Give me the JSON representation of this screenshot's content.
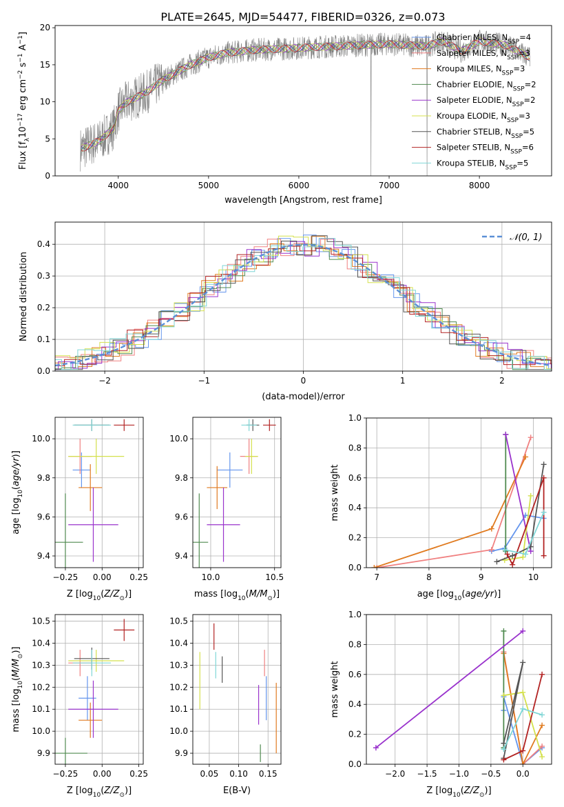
{
  "figure_title": "PLATE=2645, MJD=54477, FIBERID=0326, z=0.073",
  "colors": {
    "Chabrier MILES": "#6495ed",
    "Salpeter MILES": "#f08080",
    "Kroupa MILES": "#e07a1f",
    "Chabrier ELODIE": "#4f8a4f",
    "Salpeter ELODIE": "#9932cc",
    "Kroupa ELODIE": "#d4e04c",
    "Chabrier STELIB": "#555555",
    "Salpeter STELIB": "#b22222",
    "Kroupa STELIB": "#7fd6d6",
    "data": "#808080",
    "normal": "#5b8fd6"
  },
  "chart_data": [
    {
      "id": "spectrum",
      "type": "line",
      "xlabel": "wavelength [Angstrom, rest frame]",
      "ylabel": "Flux [f_λ 10^-17 erg cm^-2 s^-1 A^-1]",
      "xlim": [
        3300,
        8800
      ],
      "ylim": [
        0,
        20.3
      ],
      "xticks": [
        4000,
        5000,
        6000,
        7000,
        8000
      ],
      "yticks": [
        0,
        5,
        10,
        15,
        20
      ],
      "grid": false,
      "legend_placement": "right",
      "legend": [
        {
          "base": "Chabrier MILES, N",
          "sub": "SSP",
          "tail": "=4"
        },
        {
          "base": "Salpeter MILES, N",
          "sub": "SSP",
          "tail": "=3"
        },
        {
          "base": "Kroupa MILES, N",
          "sub": "SSP",
          "tail": "=3"
        },
        {
          "base": "Chabrier ELODIE, N",
          "sub": "SSP",
          "tail": "=2"
        },
        {
          "base": "Salpeter ELODIE, N",
          "sub": "SSP",
          "tail": "=2"
        },
        {
          "base": "Kroupa ELODIE, N",
          "sub": "SSP",
          "tail": "=3"
        },
        {
          "base": "Chabrier STELIB, N",
          "sub": "SSP",
          "tail": "=5"
        },
        {
          "base": "Salpeter STELIB, N",
          "sub": "SSP",
          "tail": "=6"
        },
        {
          "base": "Kroupa STELIB, N",
          "sub": "SSP",
          "tail": "=5"
        }
      ],
      "continuum": [
        [
          3580,
          3.6
        ],
        [
          3800,
          4.8
        ],
        [
          3950,
          6.5
        ],
        [
          4000,
          8.8
        ],
        [
          4100,
          10.0
        ],
        [
          4300,
          11.2
        ],
        [
          4500,
          13.0
        ],
        [
          4800,
          15.0
        ],
        [
          5000,
          16.0
        ],
        [
          5200,
          16.6
        ],
        [
          5500,
          17.0
        ],
        [
          5900,
          17.2
        ],
        [
          6200,
          17.4
        ],
        [
          6600,
          17.6
        ],
        [
          7000,
          17.8
        ],
        [
          7400,
          17.5
        ],
        [
          7600,
          18.2
        ],
        [
          7800,
          16.8
        ],
        [
          8000,
          18.2
        ],
        [
          8300,
          17.6
        ],
        [
          8560,
          16.0
        ]
      ]
    },
    {
      "id": "residuals",
      "type": "line",
      "xlabel": "(data-model)/error",
      "ylabel": "Normed distribution",
      "xlim": [
        -2.5,
        2.5
      ],
      "ylim": [
        0,
        0.47
      ],
      "xticks": [
        -2,
        -1,
        0,
        1,
        2
      ],
      "yticks": [
        0.0,
        0.1,
        0.2,
        0.3,
        0.4
      ],
      "grid": true,
      "legend_placement": "top-right",
      "legend": "𝒩(0, 1)"
    },
    {
      "id": "age_vs_Z",
      "type": "scatter",
      "xlabel": "Z [log10(Z/Z☉)]",
      "ylabel": "age  [log10(age/yr)]",
      "xlim": [
        -0.32,
        0.28
      ],
      "ylim": [
        9.34,
        10.11
      ],
      "xticks": [
        -0.25,
        0.0,
        0.25
      ],
      "yticks": [
        9.4,
        9.6,
        9.8,
        10.0
      ],
      "grid": true,
      "points": [
        {
          "model": "Chabrier MILES",
          "x": -0.14,
          "y": 9.84,
          "xerr": 0.06,
          "yerr": 0.09
        },
        {
          "model": "Salpeter MILES",
          "x": -0.15,
          "y": 9.91,
          "xerr": 0.08,
          "yerr": 0.09
        },
        {
          "model": "Kroupa MILES",
          "x": -0.08,
          "y": 9.75,
          "xerr": 0.08,
          "yerr": 0.12
        },
        {
          "model": "Chabrier ELODIE",
          "x": -0.25,
          "y": 9.47,
          "xerr": 0.12,
          "yerr": 0.25
        },
        {
          "model": "Salpeter ELODIE",
          "x": -0.06,
          "y": 9.56,
          "xerr": 0.17,
          "yerr": 0.19
        },
        {
          "model": "Kroupa ELODIE",
          "x": -0.04,
          "y": 9.91,
          "xerr": 0.19,
          "yerr": 0.09
        },
        {
          "model": "Chabrier STELIB",
          "x": -0.07,
          "y": 10.07,
          "xerr": 0.12,
          "yerr": 0.03
        },
        {
          "model": "Salpeter STELIB",
          "x": 0.15,
          "y": 10.07,
          "xerr": 0.07,
          "yerr": 0.03
        },
        {
          "model": "Kroupa STELIB",
          "x": -0.07,
          "y": 10.07,
          "xerr": 0.13,
          "yerr": 0.03
        }
      ]
    },
    {
      "id": "age_vs_mass",
      "type": "scatter",
      "xlabel": "mass [log10(M/M☉)]",
      "ylabel": "",
      "xlim": [
        9.86,
        10.55
      ],
      "ylim": [
        9.34,
        10.11
      ],
      "xticks": [
        10.0,
        10.5
      ],
      "yticks": [
        9.4,
        9.6,
        9.8,
        10.0
      ],
      "grid": true,
      "points": [
        {
          "model": "Chabrier MILES",
          "x": 10.15,
          "y": 9.84,
          "xerr": 0.1,
          "yerr": 0.09
        },
        {
          "model": "Salpeter MILES",
          "x": 10.3,
          "y": 9.91,
          "xerr": 0.07,
          "yerr": 0.09
        },
        {
          "model": "Kroupa MILES",
          "x": 10.05,
          "y": 9.75,
          "xerr": 0.08,
          "yerr": 0.11
        },
        {
          "model": "Chabrier ELODIE",
          "x": 9.91,
          "y": 9.47,
          "xerr": 0.07,
          "yerr": 0.25
        },
        {
          "model": "Salpeter ELODIE",
          "x": 10.1,
          "y": 9.56,
          "xerr": 0.13,
          "yerr": 0.19
        },
        {
          "model": "Kroupa ELODIE",
          "x": 10.32,
          "y": 9.91,
          "xerr": 0.05,
          "yerr": 0.09
        },
        {
          "model": "Chabrier STELIB",
          "x": 10.33,
          "y": 10.07,
          "xerr": 0.05,
          "yerr": 0.03
        },
        {
          "model": "Salpeter STELIB",
          "x": 10.46,
          "y": 10.07,
          "xerr": 0.05,
          "yerr": 0.03
        },
        {
          "model": "Kroupa STELIB",
          "x": 10.3,
          "y": 10.07,
          "xerr": 0.06,
          "yerr": 0.03
        }
      ]
    },
    {
      "id": "mass_weight_vs_age",
      "type": "line",
      "xlabel": "age  [log10(age/yr)]",
      "ylabel": "mass weight",
      "xlim": [
        6.8,
        10.35
      ],
      "ylim": [
        0,
        1.0
      ],
      "xticks": [
        7,
        8,
        9,
        10
      ],
      "yticks": [
        0.0,
        0.2,
        0.4,
        0.6,
        0.8,
        1.0
      ],
      "grid": true,
      "series": [
        {
          "model": "Chabrier MILES",
          "x": [
            9.2,
            9.45,
            9.85,
            10.2
          ],
          "y": [
            0.11,
            0.13,
            0.35,
            0.33
          ]
        },
        {
          "model": "Salpeter MILES",
          "x": [
            7.0,
            9.2,
            9.95
          ],
          "y": [
            0.0,
            0.12,
            0.87
          ]
        },
        {
          "model": "Kroupa MILES",
          "x": [
            6.95,
            9.2,
            9.85
          ],
          "y": [
            0.0,
            0.26,
            0.74
          ]
        },
        {
          "model": "Chabrier ELODIE",
          "x": [
            9.47,
            9.47
          ],
          "y": [
            0.11,
            0.89
          ]
        },
        {
          "model": "Salpeter ELODIE",
          "x": [
            9.47,
            9.95
          ],
          "y": [
            0.89,
            0.11
          ]
        },
        {
          "model": "Kroupa ELODIE",
          "x": [
            9.45,
            9.8,
            9.95
          ],
          "y": [
            0.05,
            0.07,
            0.48
          ]
        },
        {
          "model": "Chabrier STELIB",
          "x": [
            9.3,
            9.6,
            9.95,
            10.2
          ],
          "y": [
            0.04,
            0.08,
            0.14,
            0.69
          ]
        },
        {
          "model": "Salpeter STELIB",
          "x": [
            9.5,
            9.6,
            10.2,
            10.2
          ],
          "y": [
            0.09,
            0.02,
            0.6,
            0.08
          ]
        },
        {
          "model": "Kroupa STELIB",
          "x": [
            9.45,
            9.85,
            10.2
          ],
          "y": [
            0.12,
            0.09,
            0.37
          ]
        }
      ]
    },
    {
      "id": "mass_vs_Z",
      "type": "scatter",
      "xlabel": "Z [log10(Z/Z☉)]",
      "ylabel": "mass [log10(M/M☉)]",
      "xlim": [
        -0.32,
        0.28
      ],
      "ylim": [
        9.85,
        10.53
      ],
      "xticks": [
        -0.25,
        0.0,
        0.25
      ],
      "yticks": [
        9.9,
        10.0,
        10.1,
        10.2,
        10.3,
        10.4,
        10.5
      ],
      "grid": true,
      "points": [
        {
          "model": "Chabrier MILES",
          "x": -0.1,
          "y": 10.15,
          "xerr": 0.06,
          "yerr": 0.1
        },
        {
          "model": "Salpeter MILES",
          "x": -0.15,
          "y": 10.31,
          "xerr": 0.08,
          "yerr": 0.06
        },
        {
          "model": "Kroupa MILES",
          "x": -0.08,
          "y": 10.05,
          "xerr": 0.08,
          "yerr": 0.08
        },
        {
          "model": "Chabrier ELODIE",
          "x": -0.25,
          "y": 9.9,
          "xerr": 0.15,
          "yerr": 0.07
        },
        {
          "model": "Salpeter ELODIE",
          "x": -0.06,
          "y": 10.1,
          "xerr": 0.17,
          "yerr": 0.13
        },
        {
          "model": "Kroupa ELODIE",
          "x": -0.04,
          "y": 10.32,
          "xerr": 0.19,
          "yerr": 0.05
        },
        {
          "model": "Chabrier STELIB",
          "x": -0.07,
          "y": 10.33,
          "xerr": 0.12,
          "yerr": 0.05
        },
        {
          "model": "Salpeter STELIB",
          "x": 0.15,
          "y": 10.46,
          "xerr": 0.07,
          "yerr": 0.05
        },
        {
          "model": "Kroupa STELIB",
          "x": -0.07,
          "y": 10.31,
          "xerr": 0.13,
          "yerr": 0.06
        }
      ]
    },
    {
      "id": "mass_vs_ebv",
      "type": "scatter",
      "xlabel": "E(B-V)",
      "ylabel": "",
      "xlim": [
        0.022,
        0.172
      ],
      "ylim": [
        9.85,
        10.53
      ],
      "xticks": [
        0.05,
        0.1,
        0.15
      ],
      "yticks": [
        9.9,
        10.0,
        10.1,
        10.2,
        10.3,
        10.4,
        10.5
      ],
      "grid": true,
      "points": [
        {
          "model": "Chabrier MILES",
          "x": 0.147,
          "y": 10.15,
          "xerr": 0,
          "yerr": 0.1
        },
        {
          "model": "Salpeter MILES",
          "x": 0.144,
          "y": 10.31,
          "xerr": 0,
          "yerr": 0.06
        },
        {
          "model": "Kroupa MILES",
          "x": 0.164,
          "y": 10.06,
          "xerr": 0,
          "yerr": 0.16
        },
        {
          "model": "Chabrier ELODIE",
          "x": 0.137,
          "y": 9.9,
          "xerr": 0,
          "yerr": 0.04
        },
        {
          "model": "Salpeter ELODIE",
          "x": 0.134,
          "y": 10.12,
          "xerr": 0,
          "yerr": 0.09
        },
        {
          "model": "Kroupa ELODIE",
          "x": 0.034,
          "y": 10.23,
          "xerr": 0,
          "yerr": 0.13
        },
        {
          "model": "Chabrier STELIB",
          "x": 0.072,
          "y": 10.28,
          "xerr": 0,
          "yerr": 0.06
        },
        {
          "model": "Salpeter STELIB",
          "x": 0.058,
          "y": 10.43,
          "xerr": 0,
          "yerr": 0.06
        },
        {
          "model": "Kroupa STELIB",
          "x": 0.061,
          "y": 10.3,
          "xerr": 0,
          "yerr": 0.06
        }
      ]
    },
    {
      "id": "mass_weight_vs_Z",
      "type": "line",
      "xlabel": "Z [log10(Z/Z☉)]",
      "ylabel": "mass weight",
      "xlim": [
        -2.45,
        0.45
      ],
      "ylim": [
        0,
        1.0
      ],
      "xticks": [
        -2.0,
        -1.5,
        -1.0,
        -0.5,
        0.0
      ],
      "yticks": [
        0.0,
        0.2,
        0.4,
        0.6,
        0.8,
        1.0
      ],
      "grid": true,
      "series": [
        {
          "model": "Chabrier MILES",
          "x": [
            -0.3,
            -0.3,
            0.0,
            0.3
          ],
          "y": [
            0.36,
            0.45,
            0.0,
            0.11
          ]
        },
        {
          "model": "Salpeter MILES",
          "x": [
            -0.3,
            0.0,
            0.3
          ],
          "y": [
            0.75,
            0.0,
            0.12
          ]
        },
        {
          "model": "Kroupa MILES",
          "x": [
            -0.3,
            0.0,
            0.3
          ],
          "y": [
            0.74,
            0.0,
            0.26
          ]
        },
        {
          "model": "Chabrier ELODIE",
          "x": [
            -0.3,
            -0.3
          ],
          "y": [
            0.89,
            0.11
          ]
        },
        {
          "model": "Salpeter ELODIE",
          "x": [
            -2.3,
            0.0
          ],
          "y": [
            0.11,
            0.89
          ]
        },
        {
          "model": "Kroupa ELODIE",
          "x": [
            -0.3,
            0.0,
            0.3
          ],
          "y": [
            0.46,
            0.48,
            0.05
          ]
        },
        {
          "model": "Chabrier STELIB",
          "x": [
            -0.3,
            0.0,
            -0.3
          ],
          "y": [
            0.14,
            0.68,
            0.04
          ]
        },
        {
          "model": "Salpeter STELIB",
          "x": [
            -0.3,
            0.0,
            0.3
          ],
          "y": [
            0.03,
            0.09,
            0.6
          ]
        },
        {
          "model": "Kroupa STELIB",
          "x": [
            -0.3,
            0.0,
            0.3
          ],
          "y": [
            0.1,
            0.37,
            0.33
          ]
        }
      ]
    }
  ]
}
